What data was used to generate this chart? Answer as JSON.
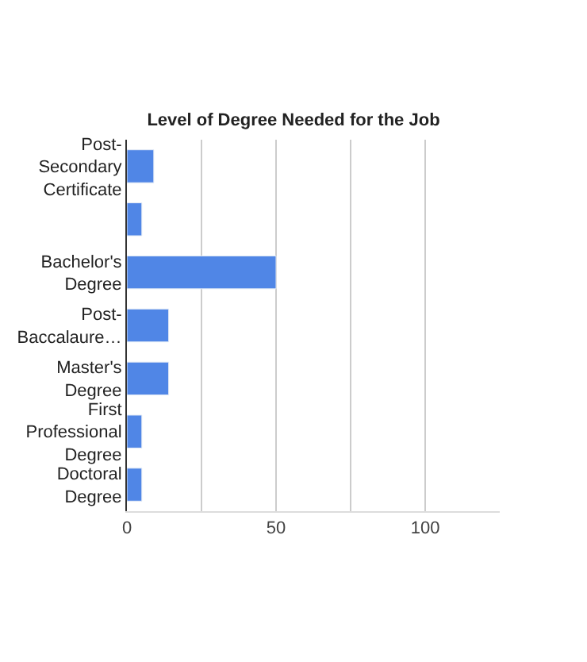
{
  "chart_data": {
    "type": "bar",
    "orientation": "horizontal",
    "title": "Level of Degree Needed for the Job",
    "categories": [
      "Post-Secondary Certificate",
      null,
      "Bachelor's Degree",
      "Post-Baccalaure…",
      "Master's Degree",
      "First Professional Degree",
      "Doctoral Degree"
    ],
    "values": [
      9,
      5,
      50,
      14,
      14,
      5,
      5
    ],
    "color": "#5086e6",
    "xlim": [
      0,
      125
    ],
    "xticks": [
      0,
      {
        "value": 25,
        "label": null
      },
      50,
      {
        "value": 75,
        "label": null
      },
      100
    ],
    "grid": "x"
  }
}
